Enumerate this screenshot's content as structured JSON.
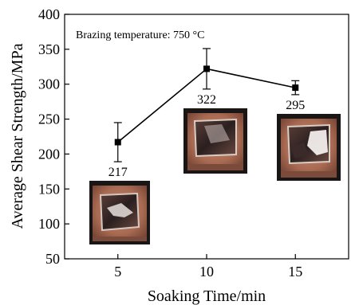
{
  "chart_data": {
    "type": "line",
    "title": "",
    "xlabel": "Soaking Time/min",
    "ylabel": "Average Shear Strength/MPa",
    "annotation": "Brazing temperature: 750 °C",
    "xlim": [
      2,
      18
    ],
    "ylim": [
      50,
      400
    ],
    "xticks": [
      5,
      10,
      15
    ],
    "yticks": [
      50,
      100,
      150,
      200,
      250,
      300,
      350,
      400
    ],
    "grid": false,
    "series": [
      {
        "x": [
          5,
          10,
          15
        ],
        "y": [
          217,
          322,
          295
        ],
        "err": [
          28,
          29,
          10
        ],
        "labels": [
          "217",
          "322",
          "295"
        ],
        "color": "#000000",
        "marker": "square"
      }
    ],
    "inset_photos": [
      {
        "for_x": 5,
        "sample": "brazed-joint-fracture-surface"
      },
      {
        "for_x": 10,
        "sample": "brazed-joint-fracture-surface"
      },
      {
        "for_x": 15,
        "sample": "brazed-joint-fracture-surface"
      }
    ]
  }
}
